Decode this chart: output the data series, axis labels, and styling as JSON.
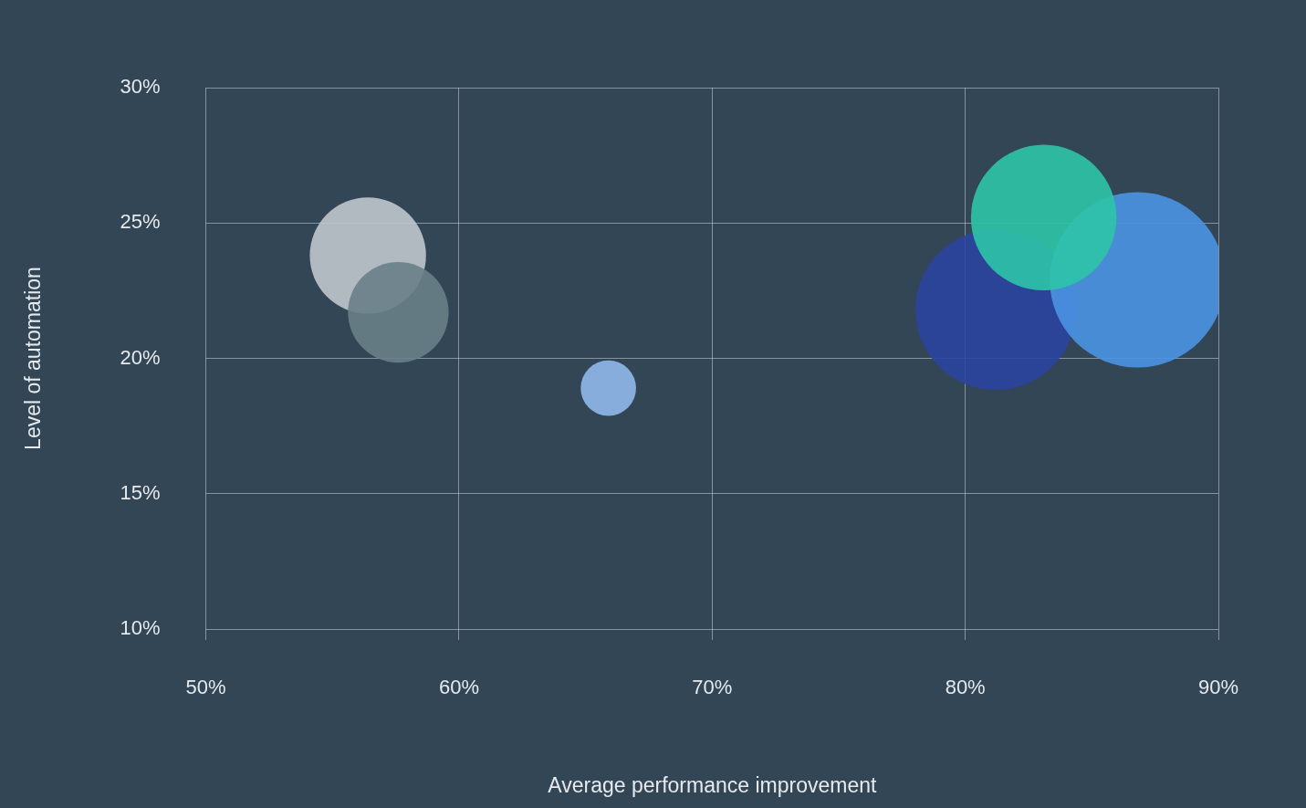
{
  "chart_data": {
    "type": "bubble",
    "xlabel": "Average performance improvement",
    "ylabel": "Level of automation",
    "xlim": [
      50,
      90
    ],
    "xticks": [
      {
        "value": 50,
        "label": "50%"
      },
      {
        "value": 60,
        "label": "60%"
      },
      {
        "value": 70,
        "label": "70%"
      },
      {
        "value": 80,
        "label": "80%"
      },
      {
        "value": 90,
        "label": "90%"
      }
    ],
    "ylim": [
      10,
      30
    ],
    "yticks": [
      {
        "value": 10,
        "label": "10%"
      },
      {
        "value": 15,
        "label": "15%"
      },
      {
        "value": 20,
        "label": "20%"
      },
      {
        "value": 25,
        "label": "25%"
      },
      {
        "value": 30,
        "label": "30%"
      }
    ],
    "grid": true,
    "legend": false,
    "series": [
      {
        "color": "#687f88",
        "x": [
          57.6
        ],
        "values": [
          21.7
        ],
        "sizes": [
          0.33
        ]
      },
      {
        "color": "#c0c6cd",
        "x": [
          56.4
        ],
        "values": [
          23.8
        ],
        "sizes": [
          0.44
        ]
      },
      {
        "color": "#8fb8ea",
        "x": [
          65.9
        ],
        "values": [
          18.9
        ],
        "sizes": [
          0.1
        ]
      },
      {
        "color": "#2ec4a8",
        "x": [
          83.1
        ],
        "values": [
          25.2
        ],
        "sizes": [
          0.69
        ]
      },
      {
        "color": "#4a94e3",
        "x": [
          86.8
        ],
        "values": [
          22.9
        ],
        "sizes": [
          1
        ]
      },
      {
        "color": "#2b44a0",
        "x": [
          81.2
        ],
        "values": [
          21.8
        ],
        "sizes": [
          0.84
        ]
      }
    ]
  }
}
